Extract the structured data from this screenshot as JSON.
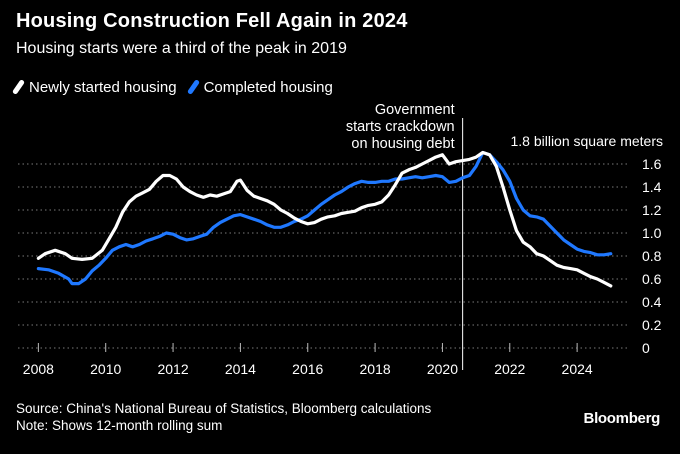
{
  "title": "Housing Construction Fell Again in 2024",
  "subtitle": "Housing starts were a third of the peak in 2019",
  "legend": [
    {
      "label": "Newly started housing",
      "color": "#ffffff"
    },
    {
      "label": "Completed housing",
      "color": "#1f78ff"
    }
  ],
  "source": "Source: China's National Bureau of Statistics, Bloomberg calculations",
  "note": "Note: Shows 12-month rolling sum",
  "brand": "Bloomberg",
  "chart_data": {
    "type": "line",
    "title": "Housing Construction Fell Again in 2024",
    "subtitle": "Housing starts were a third of the peak in 2019",
    "xlabel": "",
    "ylabel": "",
    "unit_annotation": "1.8 billion square meters",
    "xlim": [
      2007.9,
      2025.6
    ],
    "ylim": [
      0,
      1.8
    ],
    "x_ticks": [
      2008,
      2010,
      2012,
      2014,
      2016,
      2018,
      2020,
      2022,
      2024
    ],
    "y_ticks": [
      0,
      0.2,
      0.4,
      0.6,
      0.8,
      1.0,
      1.2,
      1.4,
      1.6
    ],
    "y_tick_labels": [
      "0",
      "0.2",
      "0.4",
      "0.6",
      "0.8",
      "1.0",
      "1.2",
      "1.4",
      "1.6"
    ],
    "grid": "horizontal dotted",
    "legend_position": "top-left",
    "annotation": {
      "x": 2020.6,
      "text": [
        "Government",
        "starts crackdown",
        "on housing debt"
      ]
    },
    "series": [
      {
        "name": "Newly started housing",
        "color": "#ffffff",
        "points": [
          [
            2008.0,
            0.78
          ],
          [
            2008.2,
            0.82
          ],
          [
            2008.5,
            0.85
          ],
          [
            2008.8,
            0.82
          ],
          [
            2009.0,
            0.78
          ],
          [
            2009.3,
            0.77
          ],
          [
            2009.6,
            0.78
          ],
          [
            2009.9,
            0.85
          ],
          [
            2010.1,
            0.95
          ],
          [
            2010.3,
            1.05
          ],
          [
            2010.5,
            1.18
          ],
          [
            2010.7,
            1.27
          ],
          [
            2010.9,
            1.32
          ],
          [
            2011.1,
            1.35
          ],
          [
            2011.3,
            1.38
          ],
          [
            2011.5,
            1.45
          ],
          [
            2011.7,
            1.5
          ],
          [
            2011.9,
            1.5
          ],
          [
            2012.1,
            1.47
          ],
          [
            2012.3,
            1.4
          ],
          [
            2012.5,
            1.36
          ],
          [
            2012.7,
            1.33
          ],
          [
            2012.9,
            1.31
          ],
          [
            2013.1,
            1.33
          ],
          [
            2013.3,
            1.32
          ],
          [
            2013.5,
            1.34
          ],
          [
            2013.7,
            1.36
          ],
          [
            2013.9,
            1.45
          ],
          [
            2014.0,
            1.46
          ],
          [
            2014.2,
            1.37
          ],
          [
            2014.4,
            1.32
          ],
          [
            2014.6,
            1.3
          ],
          [
            2014.8,
            1.28
          ],
          [
            2015.0,
            1.25
          ],
          [
            2015.2,
            1.2
          ],
          [
            2015.4,
            1.17
          ],
          [
            2015.6,
            1.13
          ],
          [
            2015.8,
            1.1
          ],
          [
            2016.0,
            1.08
          ],
          [
            2016.2,
            1.09
          ],
          [
            2016.4,
            1.12
          ],
          [
            2016.6,
            1.14
          ],
          [
            2016.8,
            1.15
          ],
          [
            2017.0,
            1.17
          ],
          [
            2017.2,
            1.18
          ],
          [
            2017.4,
            1.19
          ],
          [
            2017.6,
            1.22
          ],
          [
            2017.8,
            1.24
          ],
          [
            2018.0,
            1.25
          ],
          [
            2018.2,
            1.27
          ],
          [
            2018.4,
            1.33
          ],
          [
            2018.6,
            1.42
          ],
          [
            2018.8,
            1.52
          ],
          [
            2019.0,
            1.55
          ],
          [
            2019.2,
            1.57
          ],
          [
            2019.4,
            1.6
          ],
          [
            2019.6,
            1.63
          ],
          [
            2019.8,
            1.66
          ],
          [
            2020.0,
            1.68
          ],
          [
            2020.2,
            1.6
          ],
          [
            2020.4,
            1.62
          ],
          [
            2020.6,
            1.63
          ],
          [
            2020.8,
            1.64
          ],
          [
            2021.0,
            1.66
          ],
          [
            2021.2,
            1.7
          ],
          [
            2021.4,
            1.68
          ],
          [
            2021.6,
            1.58
          ],
          [
            2021.8,
            1.4
          ],
          [
            2022.0,
            1.2
          ],
          [
            2022.2,
            1.02
          ],
          [
            2022.4,
            0.92
          ],
          [
            2022.6,
            0.88
          ],
          [
            2022.8,
            0.82
          ],
          [
            2023.0,
            0.8
          ],
          [
            2023.2,
            0.76
          ],
          [
            2023.4,
            0.72
          ],
          [
            2023.6,
            0.7
          ],
          [
            2023.8,
            0.69
          ],
          [
            2024.0,
            0.68
          ],
          [
            2024.2,
            0.65
          ],
          [
            2024.4,
            0.62
          ],
          [
            2024.6,
            0.6
          ],
          [
            2024.8,
            0.57
          ],
          [
            2025.0,
            0.54
          ]
        ]
      },
      {
        "name": "Completed housing",
        "color": "#1f78ff",
        "points": [
          [
            2008.0,
            0.69
          ],
          [
            2008.3,
            0.68
          ],
          [
            2008.6,
            0.65
          ],
          [
            2008.9,
            0.6
          ],
          [
            2009.0,
            0.56
          ],
          [
            2009.2,
            0.56
          ],
          [
            2009.4,
            0.6
          ],
          [
            2009.6,
            0.67
          ],
          [
            2009.8,
            0.72
          ],
          [
            2010.0,
            0.78
          ],
          [
            2010.2,
            0.85
          ],
          [
            2010.4,
            0.88
          ],
          [
            2010.6,
            0.9
          ],
          [
            2010.8,
            0.88
          ],
          [
            2011.0,
            0.9
          ],
          [
            2011.2,
            0.93
          ],
          [
            2011.4,
            0.95
          ],
          [
            2011.6,
            0.97
          ],
          [
            2011.8,
            1.0
          ],
          [
            2012.0,
            0.99
          ],
          [
            2012.2,
            0.96
          ],
          [
            2012.4,
            0.94
          ],
          [
            2012.6,
            0.95
          ],
          [
            2012.8,
            0.97
          ],
          [
            2013.0,
            0.99
          ],
          [
            2013.2,
            1.05
          ],
          [
            2013.4,
            1.09
          ],
          [
            2013.6,
            1.12
          ],
          [
            2013.8,
            1.15
          ],
          [
            2014.0,
            1.16
          ],
          [
            2014.2,
            1.14
          ],
          [
            2014.4,
            1.12
          ],
          [
            2014.6,
            1.1
          ],
          [
            2014.8,
            1.07
          ],
          [
            2015.0,
            1.05
          ],
          [
            2015.2,
            1.05
          ],
          [
            2015.4,
            1.07
          ],
          [
            2015.6,
            1.1
          ],
          [
            2015.8,
            1.12
          ],
          [
            2016.0,
            1.15
          ],
          [
            2016.2,
            1.2
          ],
          [
            2016.4,
            1.25
          ],
          [
            2016.6,
            1.29
          ],
          [
            2016.8,
            1.33
          ],
          [
            2017.0,
            1.36
          ],
          [
            2017.2,
            1.4
          ],
          [
            2017.4,
            1.43
          ],
          [
            2017.6,
            1.45
          ],
          [
            2017.8,
            1.44
          ],
          [
            2018.0,
            1.44
          ],
          [
            2018.2,
            1.45
          ],
          [
            2018.4,
            1.45
          ],
          [
            2018.6,
            1.47
          ],
          [
            2018.8,
            1.47
          ],
          [
            2019.0,
            1.48
          ],
          [
            2019.2,
            1.49
          ],
          [
            2019.4,
            1.48
          ],
          [
            2019.6,
            1.49
          ],
          [
            2019.8,
            1.5
          ],
          [
            2020.0,
            1.49
          ],
          [
            2020.2,
            1.44
          ],
          [
            2020.4,
            1.45
          ],
          [
            2020.6,
            1.48
          ],
          [
            2020.8,
            1.5
          ],
          [
            2021.0,
            1.58
          ],
          [
            2021.2,
            1.7
          ],
          [
            2021.4,
            1.68
          ],
          [
            2021.6,
            1.62
          ],
          [
            2021.8,
            1.55
          ],
          [
            2022.0,
            1.45
          ],
          [
            2022.2,
            1.3
          ],
          [
            2022.4,
            1.2
          ],
          [
            2022.6,
            1.15
          ],
          [
            2022.8,
            1.14
          ],
          [
            2023.0,
            1.12
          ],
          [
            2023.2,
            1.06
          ],
          [
            2023.4,
            1.0
          ],
          [
            2023.6,
            0.94
          ],
          [
            2023.8,
            0.9
          ],
          [
            2024.0,
            0.86
          ],
          [
            2024.2,
            0.84
          ],
          [
            2024.4,
            0.83
          ],
          [
            2024.6,
            0.81
          ],
          [
            2024.8,
            0.81
          ],
          [
            2025.0,
            0.82
          ]
        ]
      }
    ]
  }
}
